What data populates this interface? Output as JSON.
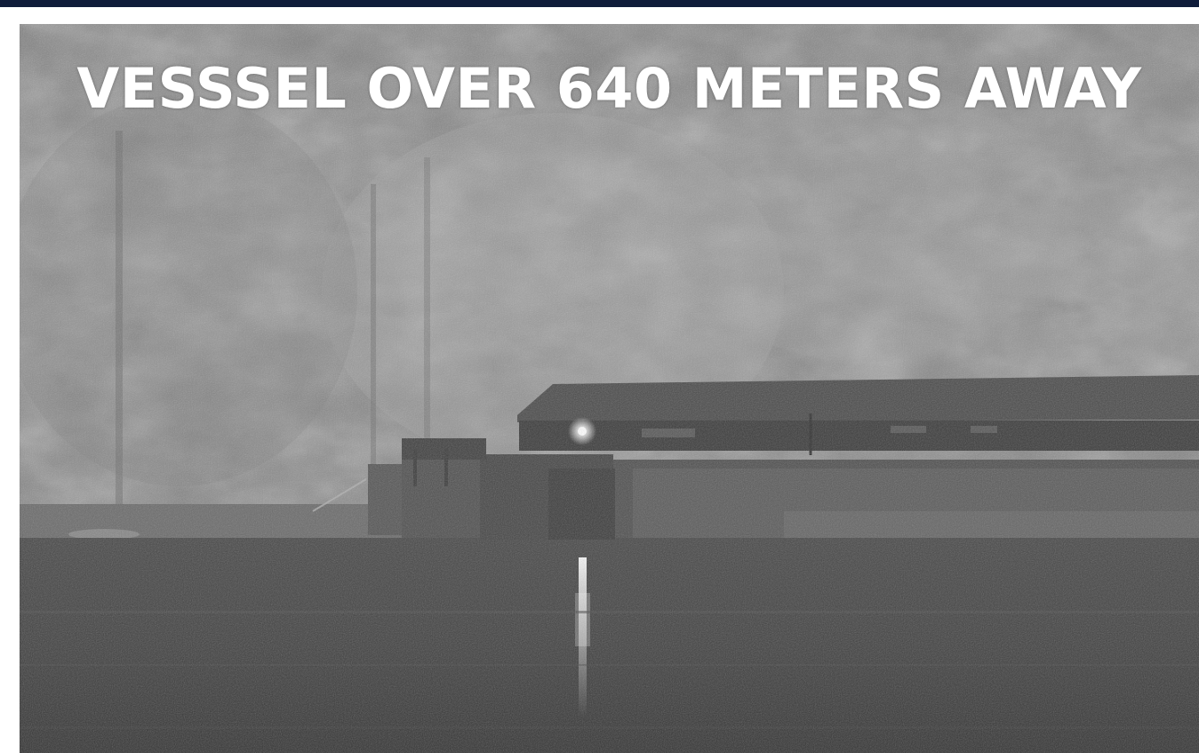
{
  "overlay": {
    "headline": "VESSSEL OVER 640 METERS AWAY"
  },
  "scene": {
    "tone": "grayscale night-vision",
    "colors": {
      "foliage": "#8c8c8c",
      "foliage_dark": "#5f5f5f",
      "vessel": "#4a4a4a",
      "water": "#3a3a3a",
      "light": "#ffffff",
      "banner": "#0f1c3a"
    }
  }
}
